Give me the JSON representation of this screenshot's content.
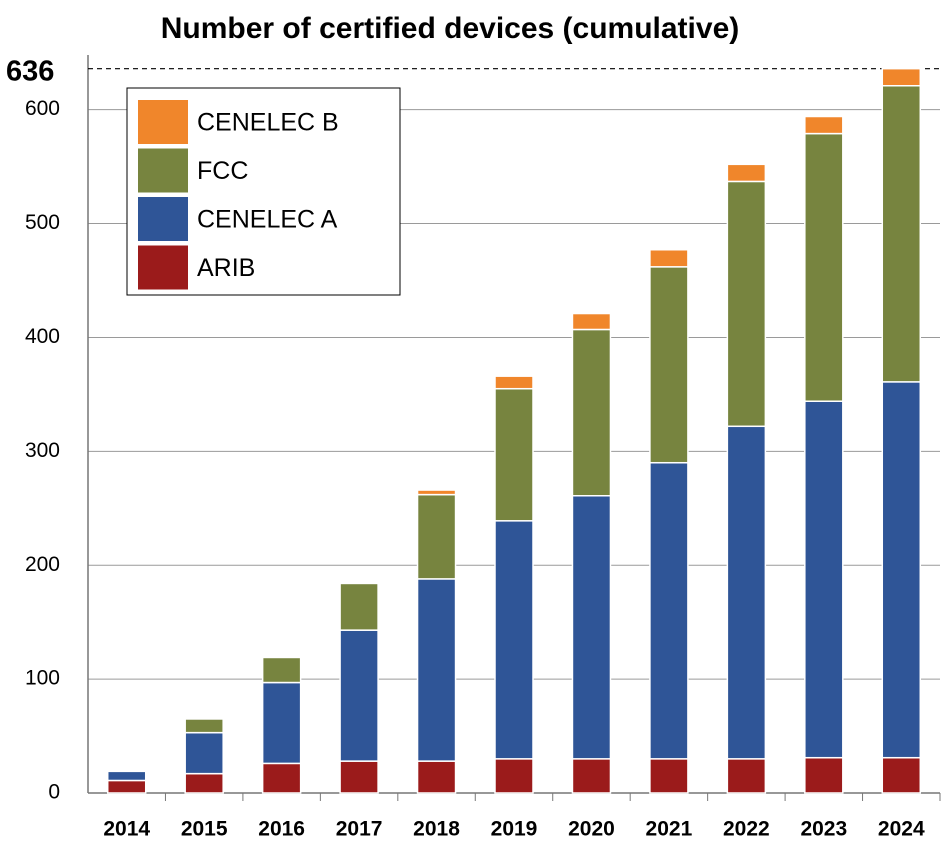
{
  "chart_data": {
    "type": "stacked_bar",
    "title": "Number of certified devices (cumulative)",
    "categories": [
      "2014",
      "2015",
      "2016",
      "2017",
      "2018",
      "2019",
      "2020",
      "2021",
      "2022",
      "2023",
      "2024"
    ],
    "series": [
      {
        "name": "ARIB",
        "color": "#9b1b1b",
        "values": [
          11,
          17,
          26,
          28,
          28,
          30,
          30,
          30,
          30,
          31,
          31
        ]
      },
      {
        "name": "CENELEC A",
        "color": "#2f5597",
        "values": [
          8,
          36,
          71,
          115,
          160,
          209,
          231,
          260,
          292,
          313,
          330
        ]
      },
      {
        "name": "FCC",
        "color": "#77843f",
        "values": [
          0,
          12,
          22,
          41,
          74,
          116,
          146,
          172,
          215,
          235,
          260
        ]
      },
      {
        "name": "CENELEC B",
        "color": "#f0862b",
        "values": [
          0,
          0,
          0,
          0,
          4,
          11,
          14,
          15,
          15,
          15,
          15
        ]
      }
    ],
    "ylim": [
      0,
      648
    ],
    "yticks": [
      0,
      100,
      200,
      300,
      400,
      500,
      600
    ],
    "grid": true,
    "legend": "upper-left",
    "total_annotation": 636
  }
}
